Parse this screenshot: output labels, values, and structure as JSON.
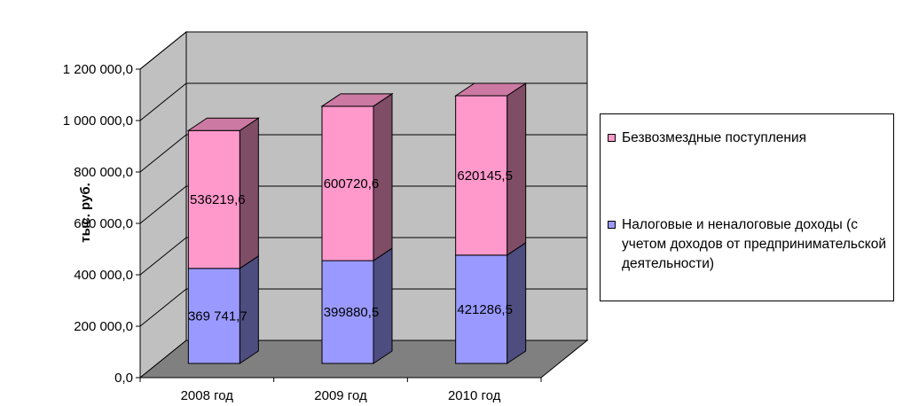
{
  "chart_data": {
    "type": "bar",
    "stacked": true,
    "three_d": true,
    "categories": [
      "2008 год",
      "2009 год",
      "2010 год"
    ],
    "series": [
      {
        "name": "Налоговые и неналоговые доходы (с учетом доходов от предпринимательской деятельности)",
        "values": [
          369741.7,
          399880.5,
          421286.5
        ],
        "data_labels": [
          "369 741,7",
          "399880,5",
          "421286,5"
        ],
        "color": "#9999ff"
      },
      {
        "name": "Безвозмездные поступления",
        "values": [
          536219.6,
          600720.6,
          620145.5
        ],
        "data_labels": [
          "536219,6",
          "600720,6",
          "620145,5"
        ],
        "color": "#ff99cc"
      }
    ],
    "ylabel": "тыс. руб.",
    "xlabel": "",
    "ylim": [
      0,
      1200000
    ],
    "yticks": [
      0,
      200000,
      400000,
      600000,
      800000,
      1000000,
      1200000
    ],
    "ytick_labels": [
      "0,0",
      "200 000,0",
      "400 000,0",
      "600 000,0",
      "800 000,0",
      "1 000 000,0",
      "1 200 000,0"
    ],
    "grid": true,
    "legend_position": "right",
    "colors": {
      "wall": "#c0c0c0",
      "floor": "#808080",
      "series1_top": "#ccccff",
      "series1_side": "#4d4d80",
      "series2_top": "#cc7aa3",
      "series2_side": "#804d66"
    }
  }
}
